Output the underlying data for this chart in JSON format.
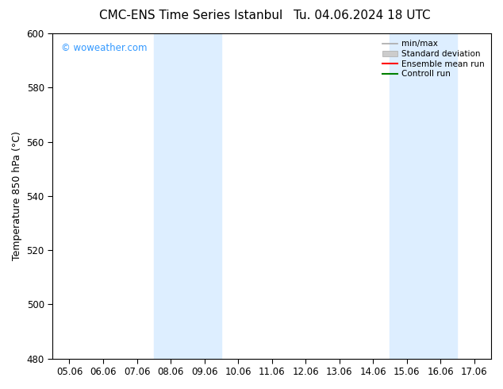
{
  "title_left": "CMC-ENS Time Series Istanbul",
  "title_right": "Tu. 04.06.2024 18 UTC",
  "ylabel": "Temperature 850 hPa (°C)",
  "watermark": "© woweather.com",
  "x_labels": [
    "05.06",
    "06.06",
    "07.06",
    "08.06",
    "09.06",
    "10.06",
    "11.06",
    "12.06",
    "13.06",
    "14.06",
    "15.06",
    "16.06",
    "17.06"
  ],
  "ylim": [
    480,
    600
  ],
  "yticks": [
    480,
    500,
    520,
    540,
    560,
    580,
    600
  ],
  "shaded_bands": [
    {
      "xstart": 3,
      "xend": 5,
      "color": "#ddeeff"
    },
    {
      "xstart": 10,
      "xend": 12,
      "color": "#ddeeff"
    }
  ],
  "legend_entries": [
    {
      "label": "min/max",
      "color": "#aaaaaa",
      "lw": 1.2,
      "style": "-"
    },
    {
      "label": "Standard deviation",
      "color": "#cccccc",
      "lw": 6,
      "style": "-"
    },
    {
      "label": "Ensemble mean run",
      "color": "red",
      "lw": 1.5,
      "style": "-"
    },
    {
      "label": "Controll run",
      "color": "green",
      "lw": 1.5,
      "style": "-"
    }
  ],
  "bg_color": "#ffffff",
  "plot_bg_color": "#ffffff",
  "border_color": "#000000",
  "title_fontsize": 11,
  "tick_fontsize": 8.5,
  "label_fontsize": 9,
  "watermark_color": "#3399ff"
}
